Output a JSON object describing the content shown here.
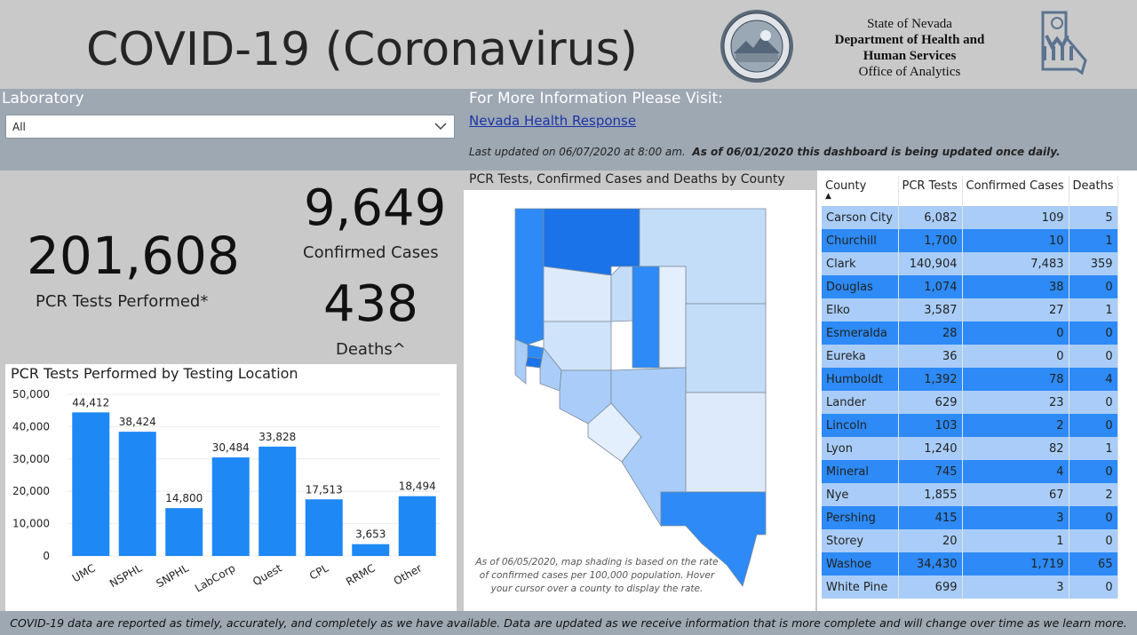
{
  "header": {
    "title": "COVID-19 (Coronavirus)",
    "agency_line1": "State of Nevada",
    "agency_line2": "Department of Health and",
    "agency_line3": "Human Services",
    "agency_line4": "Office of Analytics",
    "seal_icon": "nevada-state-seal",
    "logo_icon": "dhhs-logo"
  },
  "filters": {
    "laboratory_label": "Laboratory",
    "laboratory_value": "All"
  },
  "info": {
    "title": "For More Information Please Visit:",
    "link_text": "Nevada Health Response",
    "updated_text": "Last updated on 06/07/2020 at 8:00 am.",
    "updated_bold": "As of 06/01/2020 this dashboard is being updated once daily."
  },
  "stats": {
    "pcr_value": "201,608",
    "pcr_label": "PCR Tests Performed*",
    "cases_value": "9,649",
    "cases_label": "Confirmed Cases",
    "deaths_value": "438",
    "deaths_label": "Deaths^"
  },
  "chart_data": {
    "type": "bar",
    "title": "PCR Tests Performed by Testing Location",
    "categories": [
      "UMC",
      "NSPHL",
      "SNPHL",
      "LabCorp",
      "Quest",
      "CPL",
      "RRMC",
      "Other"
    ],
    "values": [
      44412,
      38424,
      14800,
      30484,
      33828,
      17513,
      3653,
      18494
    ],
    "value_labels": [
      "44,412",
      "38,424",
      "14,800",
      "30,484",
      "33,828",
      "17,513",
      "3,653",
      "18,494"
    ],
    "yticks": [
      "0",
      "10,000",
      "20,000",
      "30,000",
      "40,000",
      "50,000"
    ],
    "ylim": [
      0,
      50000
    ],
    "bar_color": "#1e88f5"
  },
  "map": {
    "title": "PCR Tests, Confirmed Cases and Deaths by County",
    "note": "As of 06/05/2020, map shading is based on the rate of confirmed cases per 100,000 population. Hover your cursor over a county to display the rate."
  },
  "table": {
    "columns": [
      "County",
      "PCR Tests",
      "Confirmed Cases",
      "Deaths"
    ],
    "rows": [
      {
        "county": "Carson City",
        "pcr": "6,082",
        "cases": "109",
        "deaths": "5"
      },
      {
        "county": "Churchill",
        "pcr": "1,700",
        "cases": "10",
        "deaths": "1"
      },
      {
        "county": "Clark",
        "pcr": "140,904",
        "cases": "7,483",
        "deaths": "359"
      },
      {
        "county": "Douglas",
        "pcr": "1,074",
        "cases": "38",
        "deaths": "0"
      },
      {
        "county": "Elko",
        "pcr": "3,587",
        "cases": "27",
        "deaths": "1"
      },
      {
        "county": "Esmeralda",
        "pcr": "28",
        "cases": "0",
        "deaths": "0"
      },
      {
        "county": "Eureka",
        "pcr": "36",
        "cases": "0",
        "deaths": "0"
      },
      {
        "county": "Humboldt",
        "pcr": "1,392",
        "cases": "78",
        "deaths": "4"
      },
      {
        "county": "Lander",
        "pcr": "629",
        "cases": "23",
        "deaths": "0"
      },
      {
        "county": "Lincoln",
        "pcr": "103",
        "cases": "2",
        "deaths": "0"
      },
      {
        "county": "Lyon",
        "pcr": "1,240",
        "cases": "82",
        "deaths": "1"
      },
      {
        "county": "Mineral",
        "pcr": "745",
        "cases": "4",
        "deaths": "0"
      },
      {
        "county": "Nye",
        "pcr": "1,855",
        "cases": "67",
        "deaths": "2"
      },
      {
        "county": "Pershing",
        "pcr": "415",
        "cases": "3",
        "deaths": "0"
      },
      {
        "county": "Storey",
        "pcr": "20",
        "cases": "1",
        "deaths": "0"
      },
      {
        "county": "Washoe",
        "pcr": "34,430",
        "cases": "1,719",
        "deaths": "65"
      },
      {
        "county": "White Pine",
        "pcr": "699",
        "cases": "3",
        "deaths": "0"
      }
    ]
  },
  "footer": {
    "text": "COVID-19 data are reported as timely, accurately, and completely as we have available.  Data are updated as we receive information that is more complete and will change over time as we learn more."
  }
}
